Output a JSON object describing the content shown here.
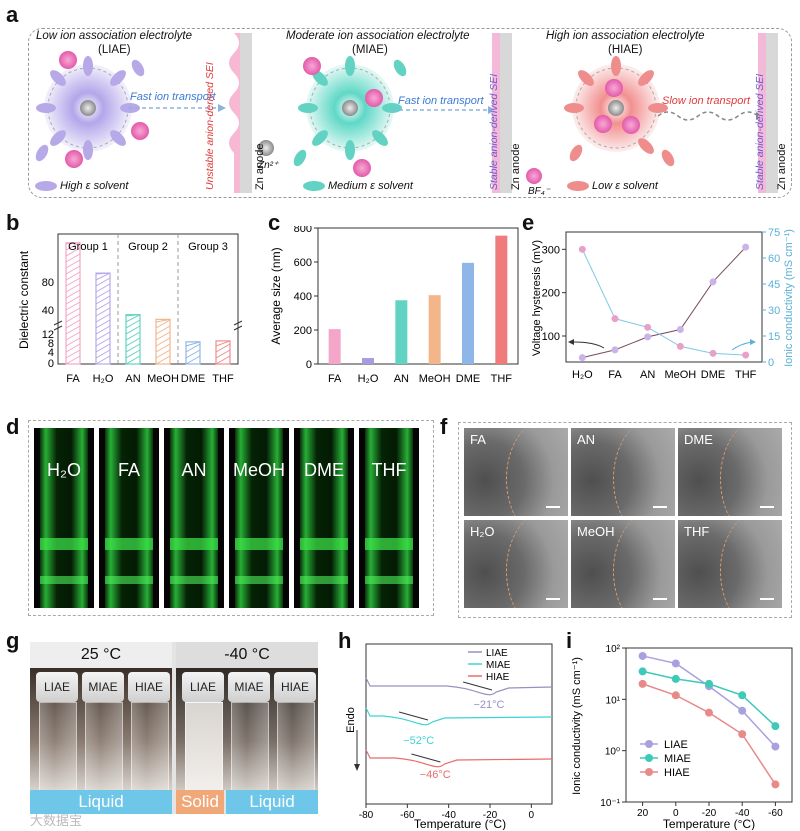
{
  "panel_labels": [
    "a",
    "b",
    "c",
    "d",
    "e",
    "f",
    "g",
    "h",
    "i"
  ],
  "panel_a": {
    "groups": [
      {
        "title": "Low ion association electrolyte",
        "abbr": "(LIAE)",
        "transport": "Fast ion transport",
        "sei": "Unstable anion-derived SEI",
        "anode": "Zn anode",
        "legend": "High ε solvent",
        "halo_color": "#a89be0",
        "solvent_color": "#b7a9e8"
      },
      {
        "title": "Moderate ion association electrolyte",
        "abbr": "(MIAE)",
        "transport": "Fast ion transport",
        "sei": "Stable anion-derived SEI",
        "anode": "Zn anode",
        "legend": "Medium ε solvent",
        "halo_color": "#5ed6c4",
        "solvent_color": "#62d3c2"
      },
      {
        "title": "High ion association electrolyte",
        "abbr": "(HIAE)",
        "transport": "Slow ion transport",
        "sei": "Stable anion-derived SEI",
        "anode": "Zn anode",
        "legend": "Low ε solvent",
        "halo_color": "#f08a8a",
        "solvent_color": "#ef8d8d"
      }
    ],
    "zn_legend": "Zn²⁺",
    "bf4_legend": "BF₄⁻",
    "colors": {
      "anion": "#e85fb0",
      "zn": "#9a9a9a",
      "fast": "#3a7bd5",
      "slow": "#e03a3a"
    }
  },
  "panel_b": {
    "group_labels": [
      "Group 1",
      "Group 2",
      "Group 3"
    ],
    "ylabel": "Dielectric constant",
    "yticks_upper": [
      "80",
      "40"
    ],
    "yticks_lower": [
      "12",
      "8",
      "4",
      "0"
    ],
    "chart_data": {
      "type": "bar",
      "title": "",
      "categories": [
        "FA",
        "H₂O",
        "AN",
        "MeOH",
        "DME",
        "THF"
      ],
      "values": [
        111,
        80,
        37.5,
        32.7,
        7.2,
        7.5
      ],
      "colors": [
        "#f4a6c8",
        "#b7a9e8",
        "#62d3c2",
        "#f3b58a",
        "#8fb6e8",
        "#ef8d8d"
      ],
      "xlabel": "",
      "ylabel": "Dielectric constant",
      "ylim": [
        0,
        120
      ]
    }
  },
  "panel_c": {
    "chart_data": {
      "type": "bar",
      "title": "",
      "categories": [
        "FA",
        "H₂O",
        "AN",
        "MeOH",
        "DME",
        "THF"
      ],
      "values": [
        205,
        35,
        375,
        405,
        595,
        755
      ],
      "colors": [
        "#f4a6c8",
        "#a89be0",
        "#62d3c2",
        "#f3b58a",
        "#8fb6e8",
        "#ef7b7b"
      ],
      "xlabel": "",
      "ylabel": "Average size (nm)",
      "ylim": [
        0,
        800
      ],
      "yticks": [
        "0",
        "200",
        "400",
        "600",
        "800"
      ]
    }
  },
  "panel_d": {
    "labels": [
      "H₂O",
      "FA",
      "AN",
      "MeOH",
      "DME",
      "THF"
    ]
  },
  "panel_e": {
    "chart_data": {
      "type": "line",
      "categories": [
        "H₂O",
        "FA",
        "AN",
        "MeOH",
        "DME",
        "THF"
      ],
      "series": [
        {
          "name": "Voltage hysteresis (mV)",
          "axis": "left",
          "color": "#7a4a5a",
          "marker_color": "#c9b3e8",
          "values": [
            50,
            68,
            98,
            115,
            225,
            305
          ]
        },
        {
          "name": "Ionic conductivity (mS cm⁻¹)",
          "axis": "right",
          "color": "#7ec8e8",
          "values": [
            65,
            25,
            20,
            9,
            5,
            4
          ]
        }
      ],
      "ylabel_left": "Voltage hysteresis (mV)",
      "ylabel_right": "Ionic conductivity (mS cm⁻¹)",
      "ylim_left": [
        40,
        340
      ],
      "ylim_right": [
        0,
        75
      ],
      "yticks_left": [
        "100",
        "200",
        "300"
      ],
      "yticks_right": [
        "0",
        "15",
        "30",
        "45",
        "60",
        "75"
      ]
    }
  },
  "panel_f": {
    "labels": [
      "FA",
      "AN",
      "DME",
      "H₂O",
      "MeOH",
      "THF"
    ]
  },
  "panel_g": {
    "temp_left": "25 °C",
    "temp_right": "-40 °C",
    "vials_left": [
      "LIAE",
      "MIAE",
      "HIAE"
    ],
    "vials_right": [
      "LIAE",
      "MIAE",
      "HIAE"
    ],
    "state_liquid_left": "Liquid",
    "state_solid": "Solid",
    "state_liquid_right": "Liquid",
    "colors": {
      "liquid": "#6ec6e8",
      "solid": "#f0a878"
    }
  },
  "panel_h": {
    "chart_data": {
      "type": "line",
      "title": "",
      "xlabel": "Temperature (°C)",
      "ylabel": "Endo",
      "xlim": [
        -80,
        10
      ],
      "xticks": [
        "-80",
        "-60",
        "-40",
        "-20",
        "0"
      ],
      "series": [
        {
          "name": "LIAE",
          "color": "#9a8fc0",
          "annotation": "−21°C",
          "transition": -21
        },
        {
          "name": "MIAE",
          "color": "#3fd3d3",
          "annotation": "−52°C",
          "transition": -52
        },
        {
          "name": "HIAE",
          "color": "#e86c6c",
          "annotation": "−46°C",
          "transition": -46
        }
      ]
    }
  },
  "panel_i": {
    "chart_data": {
      "type": "line",
      "title": "",
      "xlabel": "Temperature (°C)",
      "ylabel": "Ionic conductivity (mS cm⁻¹)",
      "x": [
        20,
        0,
        -20,
        -40,
        -60
      ],
      "xticks": [
        "20",
        "0",
        "-20",
        "-40",
        "-60"
      ],
      "yscale": "log",
      "ylim": [
        0.1,
        100
      ],
      "yticks": [
        "10⁻¹",
        "10⁰",
        "10¹",
        "10²"
      ],
      "series": [
        {
          "name": "LIAE",
          "color": "#a9a0e0",
          "values": [
            70,
            50,
            18,
            6,
            1.2
          ]
        },
        {
          "name": "MIAE",
          "color": "#3fc9b8",
          "values": [
            35,
            25,
            20,
            12,
            3
          ]
        },
        {
          "name": "HIAE",
          "color": "#e88a8a",
          "values": [
            20,
            12,
            5.5,
            2.1,
            0.22
          ]
        }
      ]
    }
  },
  "watermark": "大数据宝"
}
